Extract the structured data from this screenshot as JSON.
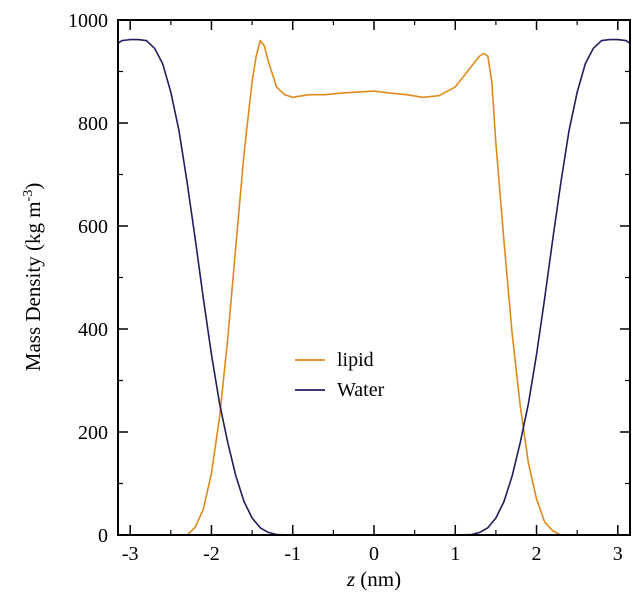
{
  "chart_data": {
    "type": "line",
    "xlabel_italic": "z",
    "xlabel_rest": " (nm)",
    "ylabel_main": "Mass Density (kg m",
    "ylabel_sup": "-3",
    "ylabel_close": ")",
    "xlim": [
      -3.15,
      3.15
    ],
    "ylim": [
      0,
      1000
    ],
    "x_ticks": [
      -3,
      -2,
      -1,
      0,
      1,
      2,
      3
    ],
    "x_tick_labels": [
      "-3",
      "-2",
      "-1",
      "0",
      "1",
      "2",
      "3"
    ],
    "y_ticks": [
      0,
      200,
      400,
      600,
      800,
      1000
    ],
    "y_tick_labels": [
      "0",
      "200",
      "400",
      "600",
      "800",
      "1000"
    ],
    "grid": false,
    "legend_position": "center",
    "series": [
      {
        "name": "lipid",
        "color": "#e08a1e",
        "x": [
          -3.15,
          -2.6,
          -2.3,
          -2.2,
          -2.1,
          -2.0,
          -1.9,
          -1.8,
          -1.7,
          -1.6,
          -1.5,
          -1.45,
          -1.4,
          -1.35,
          -1.3,
          -1.2,
          -1.1,
          -1.0,
          -0.8,
          -0.6,
          -0.4,
          -0.2,
          0.0,
          0.2,
          0.4,
          0.6,
          0.8,
          1.0,
          1.1,
          1.2,
          1.3,
          1.35,
          1.4,
          1.45,
          1.5,
          1.6,
          1.7,
          1.8,
          1.9,
          2.0,
          2.1,
          2.2,
          2.3,
          2.6,
          3.15
        ],
        "y": [
          0,
          0,
          0,
          15,
          50,
          120,
          230,
          380,
          560,
          740,
          880,
          930,
          960,
          950,
          920,
          870,
          855,
          850,
          855,
          855,
          858,
          860,
          862,
          858,
          855,
          850,
          853,
          870,
          890,
          910,
          930,
          935,
          930,
          880,
          760,
          570,
          390,
          250,
          140,
          70,
          25,
          8,
          0,
          0,
          0
        ]
      },
      {
        "name": "Water",
        "color": "#1f1f5c",
        "x": [
          -3.15,
          -3.1,
          -3.0,
          -2.9,
          -2.8,
          -2.7,
          -2.6,
          -2.5,
          -2.4,
          -2.3,
          -2.2,
          -2.1,
          -2.0,
          -1.9,
          -1.8,
          -1.7,
          -1.6,
          -1.5,
          -1.4,
          -1.3,
          -1.2,
          -1.0,
          0.0,
          1.0,
          1.2,
          1.3,
          1.4,
          1.5,
          1.6,
          1.7,
          1.8,
          1.9,
          2.0,
          2.1,
          2.2,
          2.3,
          2.4,
          2.5,
          2.6,
          2.7,
          2.8,
          2.9,
          3.0,
          3.1,
          3.15
        ],
        "y": [
          955,
          960,
          962,
          962,
          960,
          945,
          915,
          860,
          785,
          685,
          575,
          460,
          350,
          255,
          180,
          115,
          65,
          33,
          14,
          5,
          1,
          0,
          0,
          0,
          1,
          5,
          14,
          33,
          65,
          115,
          180,
          255,
          350,
          460,
          575,
          685,
          785,
          860,
          915,
          945,
          960,
          962,
          962,
          960,
          955
        ]
      }
    ]
  }
}
